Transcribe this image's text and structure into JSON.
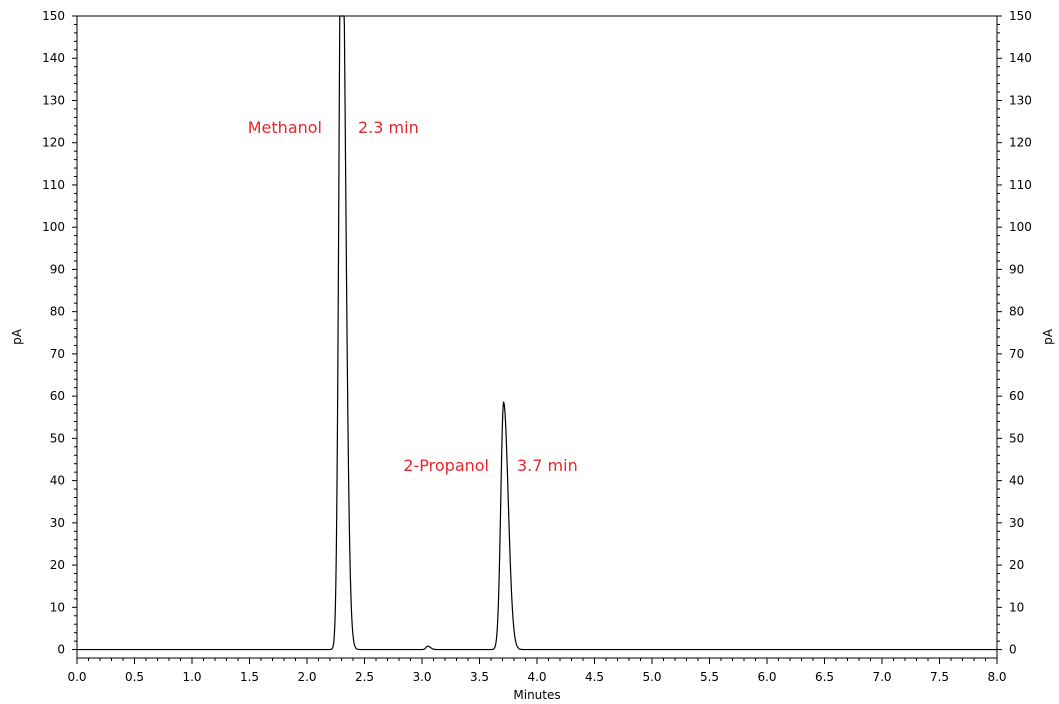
{
  "chart_data": {
    "type": "line",
    "xlabel": "Minutes",
    "ylabel": "pA",
    "y2label": "pA",
    "xlim": [
      0.0,
      8.0
    ],
    "ylim": [
      -2,
      150
    ],
    "xticks": [
      "0.0",
      "0.5",
      "1.0",
      "1.5",
      "2.0",
      "2.5",
      "3.0",
      "3.5",
      "4.0",
      "4.5",
      "5.0",
      "5.5",
      "6.0",
      "6.5",
      "7.0",
      "7.5",
      "8.0"
    ],
    "yticks": [
      "0",
      "10",
      "20",
      "30",
      "40",
      "50",
      "60",
      "70",
      "80",
      "90",
      "100",
      "110",
      "120",
      "130",
      "140",
      "150"
    ],
    "grid": false,
    "trace_color": "#000000",
    "annotation_color": "#e8262b",
    "baseline": 0,
    "peaks": [
      {
        "rt": 2.3,
        "height": 190,
        "width": 0.022
      },
      {
        "rt": 3.05,
        "height": 0.8,
        "width": 0.015
      },
      {
        "rt": 3.71,
        "height": 58.5,
        "width": 0.025
      }
    ],
    "annotations": [
      {
        "name": "Methanol",
        "rt_label": "2.3 min"
      },
      {
        "name": "2-Propanol",
        "rt_label": "3.7 min"
      }
    ]
  }
}
